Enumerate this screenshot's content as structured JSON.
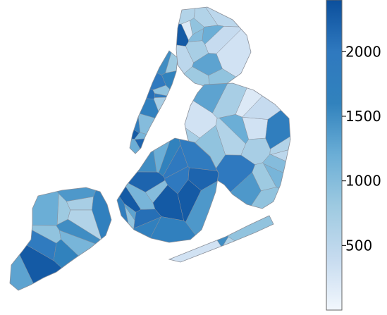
{
  "map": {
    "colorscale": {
      "min": 0,
      "max": 2400,
      "ticks": [
        {
          "value": 500,
          "label": "500"
        },
        {
          "value": 1000,
          "label": "1000"
        },
        {
          "value": 1500,
          "label": "1500"
        },
        {
          "value": 2000,
          "label": "2000"
        }
      ],
      "colors": [
        "#f2f7fd",
        "#c6dbef",
        "#9ecae1",
        "#6baed6",
        "#3182bd",
        "#2f79bf",
        "#0b4f9c"
      ]
    },
    "boroughs": [
      {
        "name": "staten-island",
        "zones": [
          1600,
          900,
          1300,
          1500,
          2300,
          1400,
          800,
          700,
          1100,
          1700,
          1900,
          600,
          1200
        ]
      },
      {
        "name": "manhattan",
        "zones": [
          2000,
          1800,
          1200,
          2200,
          900,
          1700,
          2100,
          1500,
          1000,
          1900,
          700,
          2300,
          1600,
          1100,
          800
        ]
      },
      {
        "name": "bronx",
        "zones": [
          500,
          700,
          2300,
          900,
          600,
          400,
          1300,
          800,
          300,
          1000,
          600,
          200,
          500,
          1200,
          900
        ]
      },
      {
        "name": "queens",
        "zones": [
          1200,
          700,
          1000,
          1800,
          2000,
          900,
          1400,
          700,
          500,
          300,
          800,
          600,
          1100,
          300,
          200,
          400,
          900,
          1300,
          600,
          700
        ]
      },
      {
        "name": "brooklyn",
        "zones": [
          2300,
          2100,
          1700,
          2000,
          1900,
          2200,
          1400,
          1600,
          1000,
          1800,
          2300,
          1200,
          900,
          2000,
          1500,
          2300,
          1100,
          1700,
          2200,
          1300
        ]
      },
      {
        "name": "rockaway",
        "zones": [
          600,
          1500,
          900,
          300
        ]
      }
    ]
  }
}
